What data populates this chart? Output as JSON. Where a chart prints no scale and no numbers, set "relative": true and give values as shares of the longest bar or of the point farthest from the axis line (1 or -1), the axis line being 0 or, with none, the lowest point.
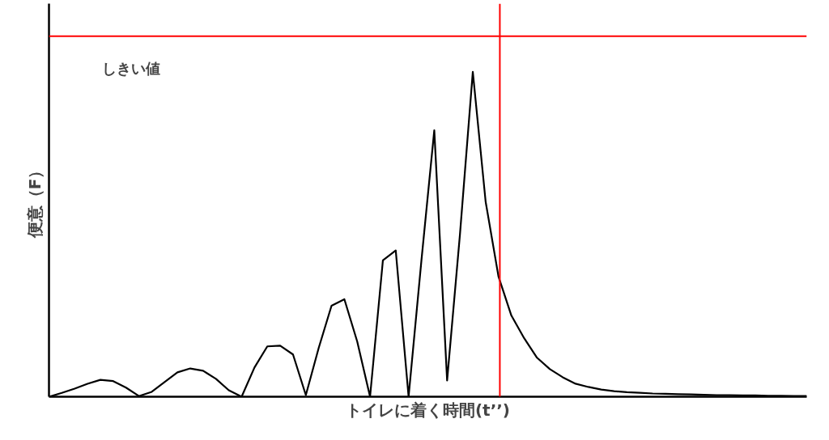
{
  "chart_data": {
    "type": "line",
    "relative": true,
    "xlabel": "トイレに着く時間(t’’)",
    "ylabel": "便意（F）",
    "categories": [
      null,
      null,
      null,
      null,
      null,
      null,
      null,
      null,
      null,
      null,
      null,
      null,
      null,
      null,
      null,
      null,
      null,
      null,
      null,
      null,
      null,
      null,
      null,
      null,
      null,
      null,
      null,
      null,
      null,
      null,
      null,
      null,
      null,
      null,
      null,
      null,
      null,
      null,
      null,
      null,
      null,
      null,
      null,
      null,
      null,
      null,
      null,
      null,
      null,
      null,
      null,
      null,
      null,
      null,
      null,
      null,
      null,
      null,
      null,
      null
    ],
    "series": [
      {
        "color": "#000000",
        "values": [
          0,
          0.012,
          0.025,
          0.04,
          0.052,
          0.048,
          0.028,
          0.002,
          0.015,
          0.045,
          0.075,
          0.087,
          0.08,
          0.055,
          0.02,
          0,
          0.09,
          0.155,
          0.157,
          0.13,
          0.005,
          0.15,
          0.28,
          0.3,
          0.17,
          0,
          0.42,
          0.45,
          0,
          0.42,
          0.82,
          0.05,
          0.5,
          1.0,
          0.6,
          0.37,
          0.25,
          0.18,
          0.12,
          0.085,
          0.06,
          0.04,
          0.03,
          0.022,
          0.017,
          0.014,
          0.012,
          0.01,
          0.009,
          0.008,
          0.007,
          0.006,
          0.005,
          0.005,
          0.004,
          0.004,
          0.003,
          0.003,
          0.002,
          0.002
        ]
      }
    ],
    "ref_lines": [
      {
        "axis": "y",
        "value": 1.11,
        "label": "しきい値",
        "color": "#ff0000"
      }
    ],
    "marker": "none",
    "line_style": "solid"
  }
}
